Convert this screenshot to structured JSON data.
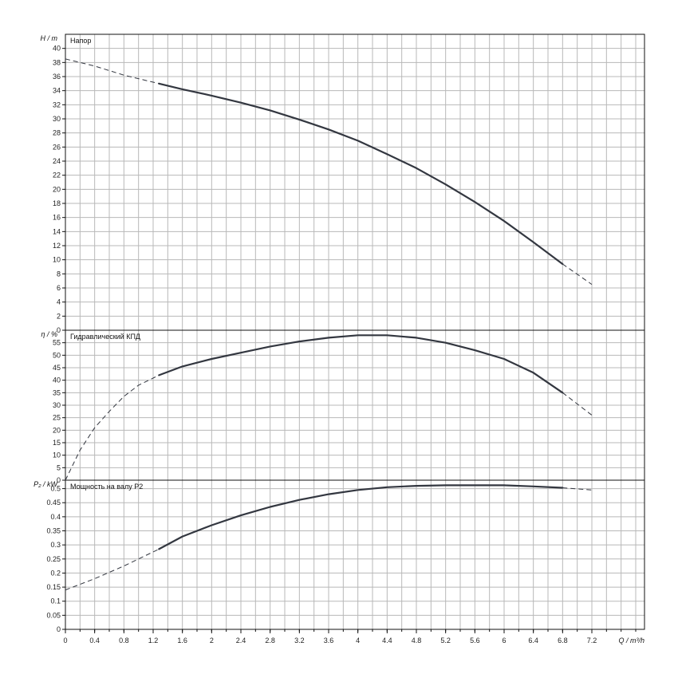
{
  "chart_data": [
    {
      "type": "line",
      "panel_label": "Напор",
      "ylabel": "H / m",
      "ylim": [
        0,
        42
      ],
      "yticks": [
        0,
        2,
        4,
        6,
        8,
        10,
        12,
        14,
        16,
        18,
        20,
        22,
        24,
        26,
        28,
        30,
        32,
        34,
        36,
        38,
        40
      ],
      "x": [
        0,
        0.4,
        0.8,
        1.28,
        1.6,
        2.0,
        2.4,
        2.8,
        3.2,
        3.6,
        4.0,
        4.4,
        4.8,
        5.2,
        5.6,
        6.0,
        6.4,
        6.8,
        7.2
      ],
      "y": [
        38.5,
        37.5,
        36.2,
        35.0,
        34.2,
        33.3,
        32.3,
        31.2,
        29.9,
        28.5,
        26.9,
        25.0,
        23.0,
        20.7,
        18.2,
        15.5,
        12.5,
        9.4,
        6.5
      ],
      "solid_range": [
        1.28,
        6.8
      ],
      "grid": true
    },
    {
      "type": "line",
      "panel_label": "Гидравлический КПД",
      "ylabel": "η / %",
      "ylim": [
        0,
        60
      ],
      "yticks": [
        0,
        5,
        10,
        15,
        20,
        25,
        30,
        35,
        40,
        45,
        50,
        55
      ],
      "x": [
        0,
        0.2,
        0.4,
        0.6,
        0.8,
        1.0,
        1.28,
        1.6,
        2.0,
        2.4,
        2.8,
        3.2,
        3.6,
        4.0,
        4.4,
        4.8,
        5.2,
        5.6,
        6.0,
        6.4,
        6.8,
        7.2
      ],
      "y": [
        0,
        12,
        21,
        27.5,
        33.5,
        38,
        42,
        45.5,
        48.5,
        51,
        53.5,
        55.5,
        57,
        58,
        58,
        57,
        55,
        52,
        48.5,
        43,
        35,
        26
      ],
      "solid_range": [
        1.28,
        6.8
      ],
      "grid": true
    },
    {
      "type": "line",
      "panel_label": "Мощность на валу P2",
      "ylabel": "P₂ / kW",
      "ylim": [
        0,
        0.53
      ],
      "yticks": [
        0,
        0.05,
        0.1,
        0.15,
        0.2,
        0.25,
        0.3,
        0.35,
        0.4,
        0.45,
        0.5
      ],
      "x": [
        0,
        0.4,
        0.8,
        1.28,
        1.6,
        2.0,
        2.4,
        2.8,
        3.2,
        3.6,
        4.0,
        4.4,
        4.8,
        5.2,
        5.6,
        6.0,
        6.4,
        6.8,
        7.2
      ],
      "y": [
        0.14,
        0.18,
        0.225,
        0.285,
        0.33,
        0.37,
        0.405,
        0.435,
        0.46,
        0.48,
        0.495,
        0.505,
        0.51,
        0.512,
        0.512,
        0.512,
        0.508,
        0.503,
        0.495
      ],
      "solid_range": [
        1.28,
        6.8
      ],
      "grid": true
    }
  ],
  "x_axis": {
    "label": "Q / m³/h",
    "xlim": [
      0,
      7.92
    ],
    "ticks": [
      "0",
      "0.4",
      "0.8",
      "1.2",
      "1.6",
      "2",
      "2.4",
      "2.8",
      "3.2",
      "3.6",
      "4",
      "4.4",
      "4.8",
      "5.2",
      "5.6",
      "6",
      "6.4",
      "6.8",
      "7.2"
    ]
  },
  "colors": {
    "grid": "#b8b8b8",
    "axis": "#111111",
    "curve": "#333740"
  }
}
